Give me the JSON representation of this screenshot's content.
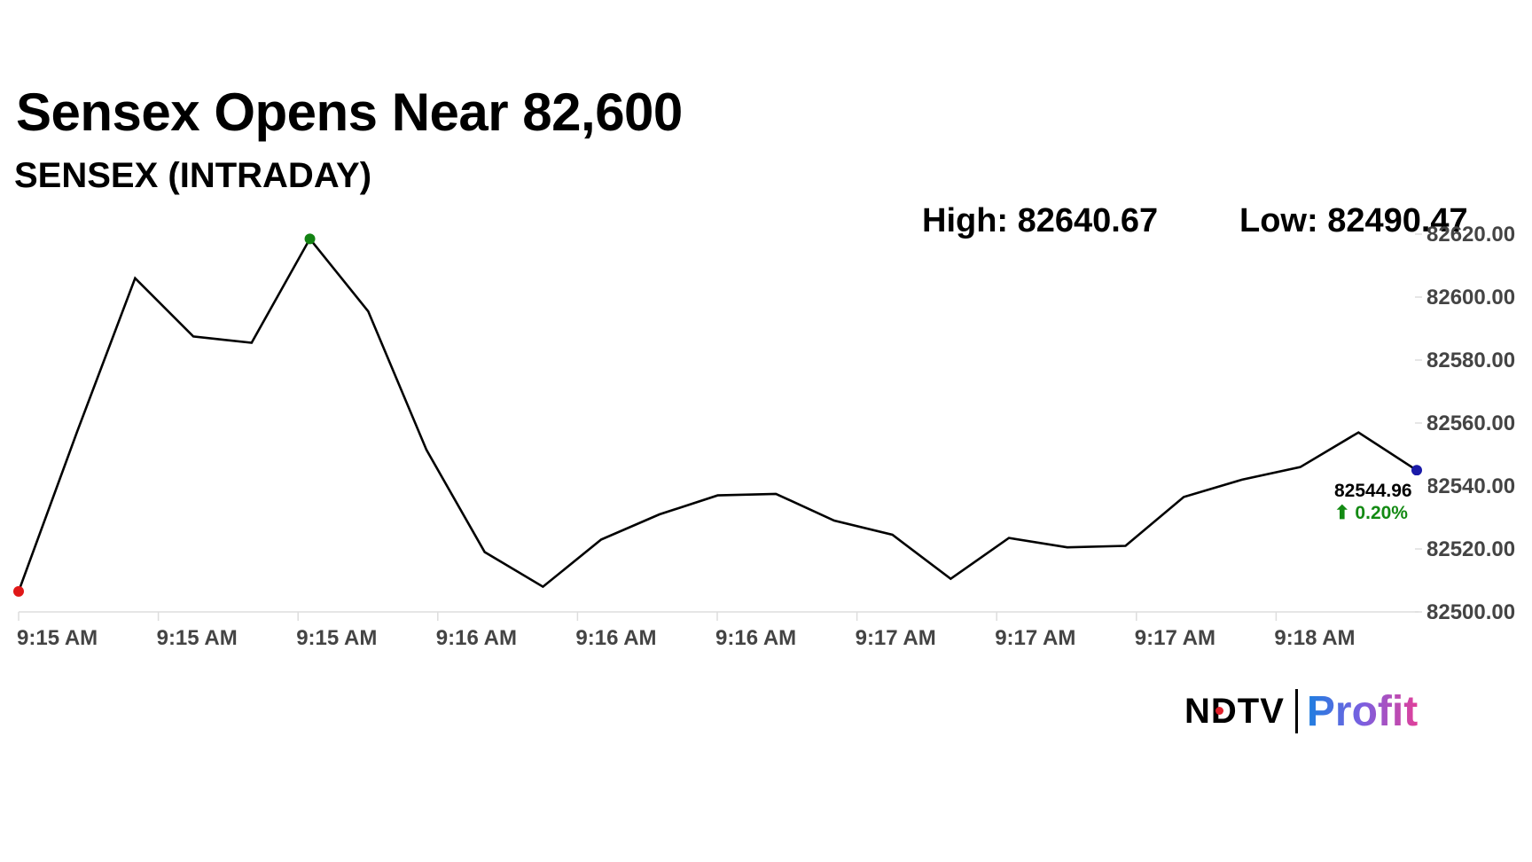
{
  "header": {
    "title": "Sensex Opens Near 82,600",
    "subtitle": "SENSEX (INTRADAY)",
    "high_text": "High: 82640.67",
    "low_text": "Low: 82490.47"
  },
  "logo": {
    "brand": "NDTV",
    "product": "Profit"
  },
  "chart_data": {
    "type": "line",
    "title": "Sensex Opens Near 82,600",
    "subtitle": "SENSEX (INTRADAY)",
    "xlabel": "",
    "ylabel": "",
    "x_tick_labels": [
      "9:15 AM",
      "9:15 AM",
      "9:15 AM",
      "9:16 AM",
      "9:16 AM",
      "9:16 AM",
      "9:17 AM",
      "9:17 AM",
      "9:17 AM",
      "9:18 AM"
    ],
    "y_tick_labels": [
      "82620.00",
      "82600.00",
      "82580.00",
      "82560.00",
      "82540.00",
      "82520.00",
      "82500.00"
    ],
    "ylim": [
      82500,
      82620
    ],
    "grid": false,
    "series": [
      {
        "values": [
          82506.5,
          82557,
          82606,
          82587.5,
          82585.5,
          82618.5,
          82595.5,
          82551.5,
          82519,
          82508,
          82523,
          82531,
          82537,
          82537.5,
          82529,
          82524.5,
          82510.5,
          82523.5,
          82520.5,
          82521,
          82536.5,
          82542,
          82546,
          82557,
          82545
        ]
      }
    ],
    "markers": {
      "start": 0,
      "high": 5,
      "last": 24
    },
    "last_value_label": "82544.96",
    "change_label": "⬆ 0.20%",
    "colors": {
      "line": "#000000",
      "start": "#e01818",
      "high": "#128212",
      "last": "#1a1aa8",
      "change": "#138a13",
      "axis": "#dddddd",
      "tick_text": "#444444"
    }
  }
}
